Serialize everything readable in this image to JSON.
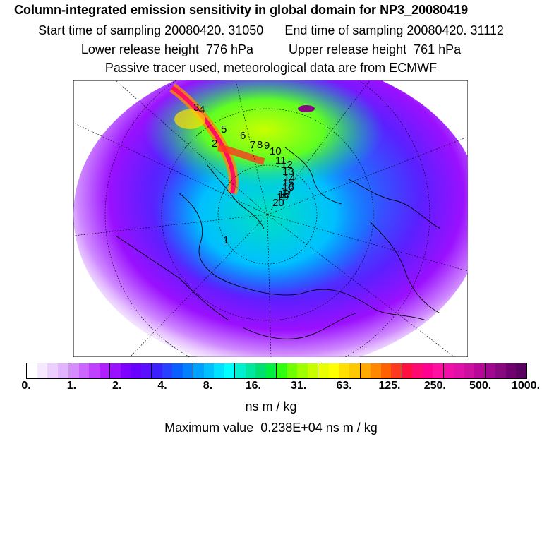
{
  "header": {
    "title": "Column-integrated emission sensitivity in global domain for NP3_20080419",
    "line2": "Start time of sampling 20080420. 31050      End time of sampling 20080420. 31112",
    "line3": "Lower release height  776 hPa          Upper release height  761 hPa",
    "line4": "Passive tracer used, meteorological data are from ECMWF"
  },
  "map": {
    "trajectory_labels": [
      "1",
      "2",
      "3",
      "4",
      "5",
      "6",
      "7",
      "8",
      "9",
      "10",
      "11",
      "12",
      "13",
      "14",
      "15",
      "16",
      "17",
      "18",
      "19",
      "20"
    ]
  },
  "colorbar": {
    "colors": [
      "#ffffff",
      "#f6e8ff",
      "#eccfff",
      "#e2b4ff",
      "#d68cff",
      "#cc66ff",
      "#c040ff",
      "#b020ff",
      "#9a10ff",
      "#8000ff",
      "#6a00ff",
      "#5a10ff",
      "#3c20ff",
      "#2840ff",
      "#0a60ff",
      "#0080ff",
      "#00a0ff",
      "#00c0ff",
      "#00e0ff",
      "#00ffff",
      "#00f0d0",
      "#00e8a0",
      "#00e070",
      "#00f040",
      "#30ff10",
      "#70ff00",
      "#a0ff00",
      "#c8ff00",
      "#e8ff00",
      "#ffff00",
      "#ffe000",
      "#ffc800",
      "#ffa800",
      "#ff8800",
      "#ff6000",
      "#ff3820",
      "#ff1040",
      "#ff0a70",
      "#ff0090",
      "#ff10a0",
      "#f010a8",
      "#e010a8",
      "#cc10a0",
      "#b80898",
      "#a00890",
      "#880880",
      "#700070",
      "#5a0060"
    ],
    "tick_labels": [
      "0.",
      "1.",
      "2.",
      "4.",
      "8.",
      "16.",
      "31.",
      "63.",
      "125.",
      "250.",
      "500.",
      "1000."
    ],
    "unit": "ns m / kg"
  },
  "footer": {
    "max_value": "Maximum value  0.238E+04 ns m / kg"
  }
}
